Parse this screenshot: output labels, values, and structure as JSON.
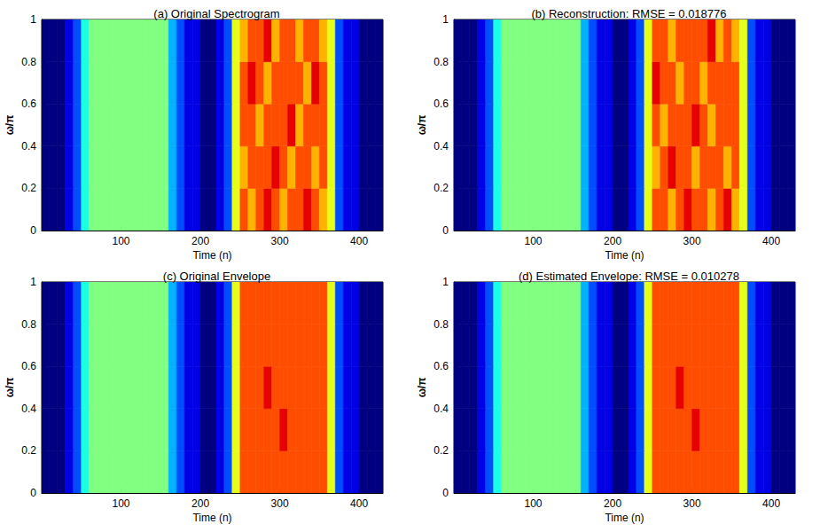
{
  "chart_data": [
    {
      "type": "heatmap",
      "title": "(a) Original Spectrogram",
      "x_label": "Time (n)",
      "y_label": "ω/π",
      "xlim": [
        0,
        430
      ],
      "ylim": [
        0,
        1
      ],
      "xticks": [
        100,
        200,
        300,
        400
      ],
      "yticks": [
        0,
        0.2,
        0.4,
        0.6,
        0.8,
        1
      ],
      "zlim": [
        0,
        10
      ],
      "x_edges": [
        0,
        10,
        20,
        30,
        40,
        50,
        60,
        70,
        80,
        90,
        100,
        110,
        120,
        130,
        140,
        150,
        160,
        170,
        180,
        190,
        200,
        210,
        220,
        230,
        240,
        250,
        260,
        270,
        280,
        290,
        300,
        310,
        320,
        330,
        340,
        350,
        360,
        370,
        380,
        390,
        400,
        410,
        420,
        430
      ],
      "y_edges": [
        0,
        0.2,
        0.4,
        0.6,
        0.8,
        1
      ],
      "cells": [
        [
          0,
          0,
          0,
          1,
          2,
          4,
          5,
          5,
          5,
          5,
          5,
          5,
          5,
          5,
          5,
          5,
          3,
          2,
          1,
          1,
          0,
          0,
          1,
          2,
          6,
          8,
          7,
          8,
          9,
          8,
          7,
          8,
          8,
          9,
          8,
          7,
          6,
          2,
          1,
          1,
          0,
          0,
          0
        ],
        [
          0,
          0,
          0,
          1,
          2,
          4,
          5,
          5,
          5,
          5,
          5,
          5,
          5,
          5,
          5,
          5,
          3,
          2,
          1,
          1,
          0,
          0,
          1,
          2,
          6,
          7,
          8,
          8,
          8,
          9,
          8,
          7,
          8,
          8,
          7,
          8,
          6,
          2,
          1,
          1,
          0,
          0,
          0
        ],
        [
          0,
          0,
          0,
          1,
          2,
          4,
          5,
          5,
          5,
          5,
          5,
          5,
          5,
          5,
          5,
          5,
          3,
          2,
          1,
          1,
          0,
          0,
          1,
          2,
          6,
          8,
          8,
          7,
          8,
          8,
          8,
          9,
          7,
          8,
          8,
          8,
          6,
          2,
          1,
          1,
          0,
          0,
          0
        ],
        [
          0,
          0,
          0,
          1,
          2,
          4,
          5,
          5,
          5,
          5,
          5,
          5,
          5,
          5,
          5,
          5,
          3,
          2,
          1,
          1,
          0,
          0,
          1,
          2,
          6,
          8,
          9,
          8,
          7,
          8,
          8,
          8,
          8,
          7,
          9,
          8,
          6,
          2,
          1,
          1,
          0,
          0,
          0
        ],
        [
          0,
          0,
          0,
          1,
          2,
          4,
          5,
          5,
          5,
          5,
          5,
          5,
          5,
          5,
          5,
          5,
          3,
          2,
          1,
          1,
          0,
          0,
          1,
          2,
          6,
          7,
          8,
          8,
          9,
          7,
          8,
          8,
          7,
          8,
          8,
          7,
          6,
          2,
          1,
          1,
          0,
          0,
          0
        ]
      ]
    },
    {
      "type": "heatmap",
      "title": "(b) Reconstruction: RMSE = 0.018776",
      "x_label": "Time (n)",
      "y_label": "ω/π",
      "xlim": [
        0,
        430
      ],
      "ylim": [
        0,
        1
      ],
      "xticks": [
        100,
        200,
        300,
        400
      ],
      "yticks": [
        0,
        0.2,
        0.4,
        0.6,
        0.8,
        1
      ],
      "zlim": [
        0,
        10
      ],
      "x_edges": [
        0,
        10,
        20,
        30,
        40,
        50,
        60,
        70,
        80,
        90,
        100,
        110,
        120,
        130,
        140,
        150,
        160,
        170,
        180,
        190,
        200,
        210,
        220,
        230,
        240,
        250,
        260,
        270,
        280,
        290,
        300,
        310,
        320,
        330,
        340,
        350,
        360,
        370,
        380,
        390,
        400,
        410,
        420,
        430
      ],
      "y_edges": [
        0,
        0.2,
        0.4,
        0.6,
        0.8,
        1
      ],
      "cells": [
        [
          0,
          0,
          0,
          1,
          2,
          4,
          5,
          5,
          5,
          5,
          5,
          5,
          5,
          5,
          5,
          5,
          3,
          2,
          1,
          1,
          0,
          0,
          1,
          2,
          6,
          8,
          8,
          7,
          8,
          9,
          8,
          8,
          7,
          8,
          9,
          7,
          6,
          2,
          1,
          1,
          0,
          0,
          0
        ],
        [
          0,
          0,
          0,
          1,
          2,
          4,
          5,
          5,
          5,
          5,
          5,
          5,
          5,
          5,
          5,
          5,
          3,
          2,
          1,
          1,
          0,
          0,
          1,
          2,
          6,
          7,
          8,
          9,
          8,
          8,
          7,
          8,
          8,
          8,
          7,
          8,
          6,
          2,
          1,
          1,
          0,
          0,
          0
        ],
        [
          0,
          0,
          0,
          1,
          2,
          4,
          5,
          5,
          5,
          5,
          5,
          5,
          5,
          5,
          5,
          5,
          3,
          2,
          1,
          1,
          0,
          0,
          1,
          2,
          6,
          8,
          7,
          8,
          8,
          8,
          9,
          8,
          7,
          8,
          8,
          8,
          6,
          2,
          1,
          1,
          0,
          0,
          0
        ],
        [
          0,
          0,
          0,
          1,
          2,
          4,
          5,
          5,
          5,
          5,
          5,
          5,
          5,
          5,
          5,
          5,
          3,
          2,
          1,
          1,
          0,
          0,
          1,
          2,
          6,
          9,
          8,
          8,
          7,
          8,
          8,
          7,
          8,
          8,
          8,
          8,
          6,
          2,
          1,
          1,
          0,
          0,
          0
        ],
        [
          0,
          0,
          0,
          1,
          2,
          4,
          5,
          5,
          5,
          5,
          5,
          5,
          5,
          5,
          5,
          5,
          3,
          2,
          1,
          1,
          0,
          0,
          1,
          2,
          6,
          8,
          8,
          7,
          8,
          8,
          8,
          8,
          9,
          7,
          8,
          7,
          6,
          2,
          1,
          1,
          0,
          0,
          0
        ]
      ]
    },
    {
      "type": "heatmap",
      "title": "(c) Original Envelope",
      "x_label": "Time (n)",
      "y_label": "ω/π",
      "xlim": [
        0,
        430
      ],
      "ylim": [
        0,
        1
      ],
      "xticks": [
        100,
        200,
        300,
        400
      ],
      "yticks": [
        0,
        0.2,
        0.4,
        0.6,
        0.8,
        1
      ],
      "zlim": [
        0,
        10
      ],
      "x_edges": [
        0,
        10,
        20,
        30,
        40,
        50,
        60,
        70,
        80,
        90,
        100,
        110,
        120,
        130,
        140,
        150,
        160,
        170,
        180,
        190,
        200,
        210,
        220,
        230,
        240,
        250,
        260,
        270,
        280,
        290,
        300,
        310,
        320,
        330,
        340,
        350,
        360,
        370,
        380,
        390,
        400,
        410,
        420,
        430
      ],
      "y_edges": [
        0,
        0.2,
        0.4,
        0.6,
        0.8,
        1
      ],
      "cells": [
        [
          0,
          0,
          0,
          1,
          2,
          4,
          5,
          5,
          5,
          5,
          5,
          5,
          5,
          5,
          5,
          5,
          3,
          2,
          1,
          1,
          0,
          0,
          1,
          2,
          6,
          8,
          8,
          8,
          8,
          8,
          8,
          8,
          8,
          8,
          8,
          8,
          6,
          2,
          1,
          1,
          0,
          0,
          0
        ],
        [
          0,
          0,
          0,
          1,
          2,
          4,
          5,
          5,
          5,
          5,
          5,
          5,
          5,
          5,
          5,
          5,
          3,
          2,
          1,
          1,
          0,
          0,
          1,
          2,
          6,
          8,
          8,
          8,
          8,
          8,
          9,
          8,
          8,
          8,
          8,
          8,
          6,
          2,
          1,
          1,
          0,
          0,
          0
        ],
        [
          0,
          0,
          0,
          1,
          2,
          4,
          5,
          5,
          5,
          5,
          5,
          5,
          5,
          5,
          5,
          5,
          3,
          2,
          1,
          1,
          0,
          0,
          1,
          2,
          6,
          8,
          8,
          8,
          9,
          8,
          8,
          8,
          8,
          8,
          8,
          8,
          6,
          2,
          1,
          1,
          0,
          0,
          0
        ],
        [
          0,
          0,
          0,
          1,
          2,
          4,
          5,
          5,
          5,
          5,
          5,
          5,
          5,
          5,
          5,
          5,
          3,
          2,
          1,
          1,
          0,
          0,
          1,
          2,
          6,
          8,
          8,
          8,
          8,
          8,
          8,
          8,
          8,
          8,
          8,
          8,
          6,
          2,
          1,
          1,
          0,
          0,
          0
        ],
        [
          0,
          0,
          0,
          1,
          2,
          4,
          5,
          5,
          5,
          5,
          5,
          5,
          5,
          5,
          5,
          5,
          3,
          2,
          1,
          1,
          0,
          0,
          1,
          2,
          6,
          8,
          8,
          8,
          8,
          8,
          8,
          8,
          8,
          8,
          8,
          8,
          6,
          2,
          1,
          1,
          0,
          0,
          0
        ]
      ]
    },
    {
      "type": "heatmap",
      "title": "(d) Estimated Envelope: RMSE = 0.010278",
      "x_label": "Time (n)",
      "y_label": "ω/π",
      "xlim": [
        0,
        430
      ],
      "ylim": [
        0,
        1
      ],
      "xticks": [
        100,
        200,
        300,
        400
      ],
      "yticks": [
        0,
        0.2,
        0.4,
        0.6,
        0.8,
        1
      ],
      "zlim": [
        0,
        10
      ],
      "x_edges": [
        0,
        10,
        20,
        30,
        40,
        50,
        60,
        70,
        80,
        90,
        100,
        110,
        120,
        130,
        140,
        150,
        160,
        170,
        180,
        190,
        200,
        210,
        220,
        230,
        240,
        250,
        260,
        270,
        280,
        290,
        300,
        310,
        320,
        330,
        340,
        350,
        360,
        370,
        380,
        390,
        400,
        410,
        420,
        430
      ],
      "y_edges": [
        0,
        0.2,
        0.4,
        0.6,
        0.8,
        1
      ],
      "cells": [
        [
          0,
          0,
          0,
          1,
          2,
          4,
          5,
          5,
          5,
          5,
          5,
          5,
          5,
          5,
          5,
          5,
          3,
          2,
          1,
          1,
          0,
          0,
          1,
          2,
          6,
          8,
          8,
          8,
          8,
          8,
          8,
          8,
          8,
          8,
          8,
          8,
          6,
          2,
          1,
          1,
          0,
          0,
          0
        ],
        [
          0,
          0,
          0,
          1,
          2,
          4,
          5,
          5,
          5,
          5,
          5,
          5,
          5,
          5,
          5,
          5,
          3,
          2,
          1,
          1,
          0,
          0,
          1,
          2,
          6,
          8,
          8,
          8,
          8,
          8,
          9,
          8,
          8,
          8,
          8,
          8,
          6,
          2,
          1,
          1,
          0,
          0,
          0
        ],
        [
          0,
          0,
          0,
          1,
          2,
          4,
          5,
          5,
          5,
          5,
          5,
          5,
          5,
          5,
          5,
          5,
          3,
          2,
          1,
          1,
          0,
          0,
          1,
          2,
          6,
          8,
          8,
          8,
          9,
          8,
          8,
          8,
          8,
          8,
          8,
          8,
          6,
          2,
          1,
          1,
          0,
          0,
          0
        ],
        [
          0,
          0,
          0,
          1,
          2,
          4,
          5,
          5,
          5,
          5,
          5,
          5,
          5,
          5,
          5,
          5,
          3,
          2,
          1,
          1,
          0,
          0,
          1,
          2,
          6,
          8,
          8,
          8,
          8,
          8,
          8,
          8,
          8,
          8,
          8,
          8,
          6,
          2,
          1,
          1,
          0,
          0,
          0
        ],
        [
          0,
          0,
          0,
          1,
          2,
          4,
          5,
          5,
          5,
          5,
          5,
          5,
          5,
          5,
          5,
          5,
          3,
          2,
          1,
          1,
          0,
          0,
          1,
          2,
          6,
          8,
          8,
          8,
          8,
          8,
          8,
          8,
          8,
          8,
          8,
          8,
          6,
          2,
          1,
          1,
          0,
          0,
          0
        ]
      ]
    }
  ]
}
